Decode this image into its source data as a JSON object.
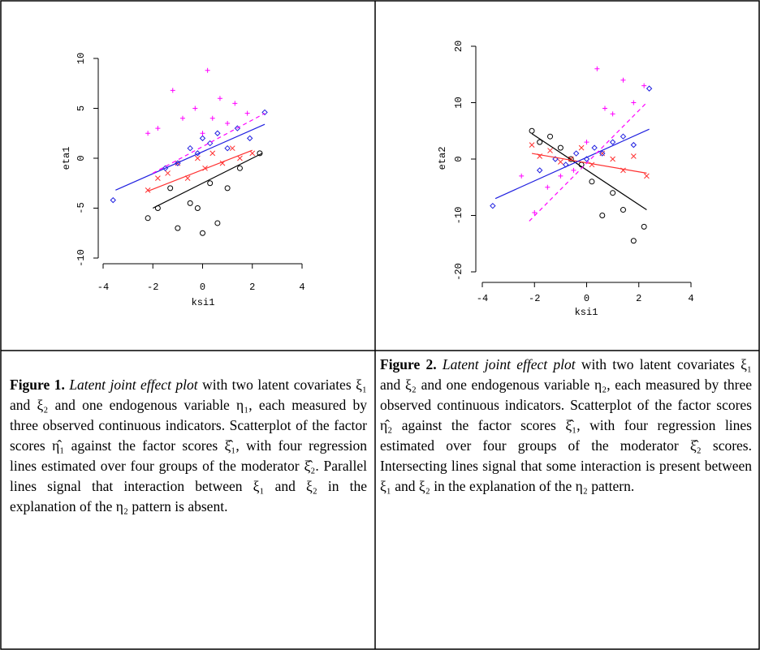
{
  "chart_data": [
    {
      "type": "scatter",
      "xlabel": "ksi1",
      "ylabel": "eta1",
      "xlim": [
        -4,
        4
      ],
      "xticks": [
        -4,
        -2,
        0,
        2,
        4
      ],
      "ylim": [
        -10,
        10
      ],
      "yticks": [
        -10,
        -5,
        0,
        5,
        10
      ],
      "series": [
        {
          "color": "#000000",
          "marker": "circle",
          "x": [
            -2.2,
            -1.8,
            -1.3,
            -1,
            -0.5,
            -0.2,
            0,
            0.3,
            0.6,
            1,
            1.5,
            2.3
          ],
          "values": [
            -6,
            -5,
            -3,
            -7,
            -4.5,
            -5,
            -7.5,
            -2.5,
            -6.5,
            -3,
            -1,
            0.5
          ]
        },
        {
          "color": "#ff3030",
          "marker": "cross",
          "x": [
            -2.2,
            -1.8,
            -1.4,
            -1,
            -0.6,
            -0.2,
            0.1,
            0.4,
            0.8,
            1.2,
            1.5,
            2
          ],
          "values": [
            -3.2,
            -2,
            -1.5,
            -0.5,
            -2,
            0,
            -1,
            0.5,
            -0.5,
            1,
            0,
            0.5
          ]
        },
        {
          "color": "#2020e0",
          "marker": "diamond",
          "x": [
            -3.6,
            -1.5,
            -1,
            -0.5,
            -0.2,
            0,
            0.3,
            0.6,
            1,
            1.4,
            1.9,
            2.5
          ],
          "values": [
            -4.2,
            -1,
            -0.5,
            1,
            0.5,
            2,
            1.5,
            2.5,
            1,
            3,
            2,
            4.6
          ]
        },
        {
          "color": "#ff00ff",
          "marker": "plus",
          "x": [
            -2.2,
            -1.8,
            -1.2,
            -0.8,
            -0.3,
            0,
            0.2,
            0.4,
            0.7,
            1,
            1.3,
            1.8
          ],
          "values": [
            2.5,
            3,
            6.8,
            4,
            5,
            2.5,
            8.8,
            4,
            6,
            3.5,
            5.5,
            4.5
          ]
        }
      ],
      "lines": [
        {
          "color": "#000000",
          "dashed": false,
          "x": [
            -2,
            2.4
          ],
          "values": [
            -5,
            0.5
          ]
        },
        {
          "color": "#ff3030",
          "dashed": false,
          "x": [
            -2.2,
            2
          ],
          "values": [
            -3.3,
            0.8
          ]
        },
        {
          "color": "#2020e0",
          "dashed": false,
          "x": [
            -3.5,
            2.5
          ],
          "values": [
            -3.2,
            3.4
          ]
        },
        {
          "color": "#ff00ff",
          "dashed": true,
          "x": [
            -2,
            2.5
          ],
          "values": [
            -1.5,
            4.5
          ]
        }
      ]
    },
    {
      "type": "scatter",
      "xlabel": "ksi1",
      "ylabel": "eta2",
      "xlim": [
        -4,
        4
      ],
      "xticks": [
        -4,
        -2,
        0,
        2,
        4
      ],
      "ylim": [
        -20,
        20
      ],
      "yticks": [
        -20,
        -10,
        0,
        10,
        20
      ],
      "series": [
        {
          "color": "#000000",
          "marker": "circle",
          "x": [
            -2.1,
            -1.8,
            -1.4,
            -1,
            -0.6,
            -0.2,
            0.2,
            0.6,
            1,
            1.4,
            1.8,
            2.2
          ],
          "values": [
            5,
            3,
            4,
            2,
            0,
            -1,
            -4,
            -10,
            -6,
            -9,
            -14.5,
            -12
          ]
        },
        {
          "color": "#ff3030",
          "marker": "cross",
          "x": [
            -2.1,
            -1.8,
            -1.4,
            -1,
            -0.6,
            -0.2,
            0.2,
            0.6,
            1,
            1.4,
            1.8,
            2.3
          ],
          "values": [
            2.5,
            0.5,
            1.5,
            -0.5,
            0,
            2,
            -1,
            1,
            0,
            -2,
            0.5,
            -3
          ]
        },
        {
          "color": "#2020e0",
          "marker": "diamond",
          "x": [
            -3.6,
            -1.8,
            -1.2,
            -0.8,
            -0.4,
            0,
            0.3,
            0.6,
            1,
            1.4,
            1.8,
            2.4
          ],
          "values": [
            -8.3,
            -2,
            0,
            -1,
            1,
            0,
            2,
            1,
            3,
            4,
            2.5,
            12.5
          ]
        },
        {
          "color": "#ff00ff",
          "marker": "plus",
          "x": [
            -2.5,
            -2,
            -1.5,
            -1,
            -0.5,
            0,
            0.4,
            0.7,
            1,
            1.4,
            1.8,
            2.2
          ],
          "values": [
            -3,
            -9.5,
            -5,
            -3,
            -2,
            3,
            16,
            9,
            8,
            14,
            10,
            13
          ]
        }
      ],
      "lines": [
        {
          "color": "#000000",
          "dashed": false,
          "x": [
            -2.1,
            2.3
          ],
          "values": [
            4.5,
            -9
          ]
        },
        {
          "color": "#ff3030",
          "dashed": false,
          "x": [
            -2.1,
            2.3
          ],
          "values": [
            1,
            -2.5
          ]
        },
        {
          "color": "#2020e0",
          "dashed": false,
          "x": [
            -3.5,
            2.4
          ],
          "values": [
            -7,
            5.3
          ]
        },
        {
          "color": "#ff00ff",
          "dashed": true,
          "x": [
            -2.2,
            2.3
          ],
          "values": [
            -11,
            10
          ]
        }
      ]
    }
  ],
  "captions": [
    {
      "label": "Figure 1.",
      "title": "Latent joint effect plot",
      "text": "with two latent covariates ξ₁ and ξ₂ and one endogenous variable η₁, each measured by three observed continuous indicators. Scatterplot of the factor scores η̂₁ against the factor scores ξ̂₁, with four regression lines estimated over four groups of the moderator ξ̂₂. Parallel lines signal that interaction between ξ₁ and ξ₂ in the explanation of the η₂ pattern is absent."
    },
    {
      "label": "Figure 2.",
      "title": "Latent joint effect plot",
      "text": "with two latent covariates ξ₁ and ξ₂ and one endogenous variable η₂, each measured by three observed continuous indicators. Scatterplot of the factor scores η̂₂ against the factor scores ξ̂₁, with four regression lines estimated over four groups of the moderator ξ̂₂ scores. Intersecting lines signal that some interaction is present between ξ₁ and ξ₂ in the explanation of the η₂ pattern."
    }
  ]
}
